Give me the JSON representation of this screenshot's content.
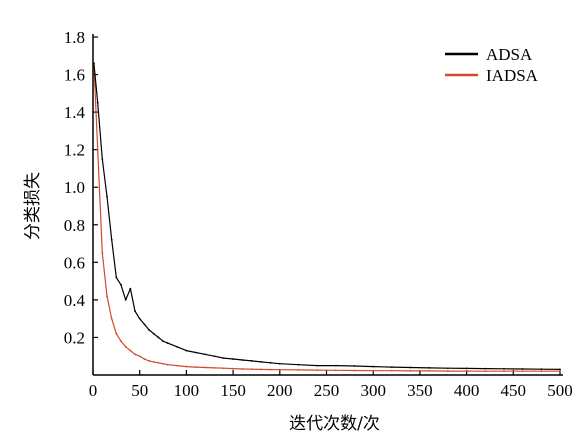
{
  "chart_data": {
    "type": "line",
    "title": "",
    "xlabel": "迭代次数/次",
    "ylabel": "分类损失",
    "xlim": [
      0,
      500
    ],
    "ylim": [
      0,
      1.8
    ],
    "x_ticks": [
      0,
      50,
      100,
      150,
      200,
      250,
      300,
      350,
      400,
      450,
      500
    ],
    "y_ticks": [
      0.2,
      0.4,
      0.6,
      0.8,
      1.0,
      1.2,
      1.4,
      1.6,
      1.8
    ],
    "y_tick_labels": [
      "0.2",
      "0.4",
      "0.6",
      "0.8",
      "1.0",
      "1.2",
      "1.4",
      "1.6",
      "1.8"
    ],
    "grid": false,
    "legend_position": "top-right",
    "series": [
      {
        "name": "ADSA",
        "color": "#000000",
        "x": [
          1,
          5,
          10,
          15,
          20,
          25,
          30,
          35,
          40,
          45,
          50,
          55,
          60,
          65,
          70,
          75,
          80,
          90,
          100,
          110,
          120,
          130,
          140,
          150,
          160,
          170,
          180,
          190,
          200,
          220,
          240,
          260,
          280,
          300,
          320,
          340,
          360,
          380,
          400,
          420,
          440,
          460,
          480,
          500
        ],
        "y": [
          1.66,
          1.45,
          1.15,
          0.95,
          0.72,
          0.52,
          0.48,
          0.4,
          0.46,
          0.34,
          0.3,
          0.27,
          0.24,
          0.22,
          0.2,
          0.18,
          0.17,
          0.15,
          0.13,
          0.12,
          0.11,
          0.1,
          0.09,
          0.085,
          0.08,
          0.075,
          0.07,
          0.065,
          0.06,
          0.055,
          0.05,
          0.05,
          0.048,
          0.045,
          0.042,
          0.04,
          0.038,
          0.036,
          0.035,
          0.034,
          0.033,
          0.032,
          0.031,
          0.03
        ]
      },
      {
        "name": "IADSA",
        "color": "#d24a2c",
        "x": [
          1,
          5,
          10,
          15,
          20,
          25,
          30,
          35,
          40,
          45,
          50,
          55,
          60,
          65,
          70,
          75,
          80,
          90,
          100,
          110,
          120,
          130,
          140,
          150,
          160,
          170,
          180,
          190,
          200,
          220,
          240,
          260,
          280,
          300,
          320,
          340,
          360,
          380,
          400,
          420,
          440,
          460,
          480,
          500
        ],
        "y": [
          1.66,
          1.2,
          0.65,
          0.42,
          0.3,
          0.22,
          0.18,
          0.15,
          0.13,
          0.11,
          0.1,
          0.085,
          0.075,
          0.07,
          0.065,
          0.06,
          0.055,
          0.05,
          0.045,
          0.042,
          0.04,
          0.038,
          0.036,
          0.034,
          0.032,
          0.031,
          0.03,
          0.029,
          0.028,
          0.027,
          0.026,
          0.025,
          0.024,
          0.023,
          0.023,
          0.022,
          0.022,
          0.021,
          0.021,
          0.02,
          0.02,
          0.02,
          0.02,
          0.02
        ]
      }
    ]
  }
}
